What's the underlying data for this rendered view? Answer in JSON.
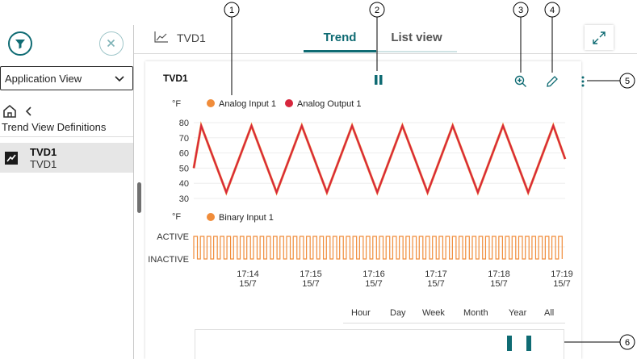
{
  "sidebar": {
    "app_view_label": "Application View",
    "breadcrumb_label": "Trend View Definitions",
    "items": [
      {
        "title": "TVD1",
        "subtitle": "TVD1"
      }
    ]
  },
  "header": {
    "title": "TVD1",
    "tabs": [
      {
        "label": "Trend",
        "active": true
      },
      {
        "label": "List view",
        "active": false
      }
    ]
  },
  "panel": {
    "title": "TVD1"
  },
  "chart_data": [
    {
      "type": "line",
      "unit_label": "°F",
      "series": [
        {
          "name": "Analog Input 1",
          "color": "#f08c3a"
        },
        {
          "name": "Analog Output 1",
          "color": "#d7263d"
        }
      ],
      "y_ticks": [
        80,
        70,
        60,
        50,
        40,
        30
      ],
      "ylim": [
        30,
        80
      ],
      "peaks_x_labels_hint": "sawtooth 34-78 repeating",
      "triangle_points": [
        [
          0,
          50
        ],
        [
          0.5,
          78
        ],
        [
          2.2,
          34
        ],
        [
          3.9,
          78
        ],
        [
          5.6,
          34
        ],
        [
          7.3,
          78
        ],
        [
          9.0,
          34
        ],
        [
          10.7,
          78
        ],
        [
          12.4,
          34
        ],
        [
          14.1,
          78
        ],
        [
          15.8,
          34
        ],
        [
          17.5,
          78
        ],
        [
          19.2,
          34
        ],
        [
          20.9,
          78
        ],
        [
          22.6,
          34
        ],
        [
          24.3,
          78
        ],
        [
          25.1,
          56
        ]
      ]
    },
    {
      "type": "line",
      "unit_label": "°F",
      "series": [
        {
          "name": "Binary Input 1",
          "color": "#f08c3a"
        }
      ],
      "y_ticks": [
        "ACTIVE",
        "INACTIVE"
      ],
      "x_ticks": [
        {
          "time": "17:14",
          "date": "15/7"
        },
        {
          "time": "17:15",
          "date": "15/7"
        },
        {
          "time": "17:16",
          "date": "15/7"
        },
        {
          "time": "17:17",
          "date": "15/7"
        },
        {
          "time": "17:18",
          "date": "15/7"
        },
        {
          "time": "17:19",
          "date": "15/7"
        }
      ],
      "pulse_count": 56
    }
  ],
  "ranges": [
    "Hour",
    "Day",
    "Week",
    "Month",
    "Year",
    "All"
  ],
  "callouts": [
    "1",
    "2",
    "3",
    "4",
    "5",
    "6"
  ],
  "colors": {
    "accent": "#0f6b73",
    "series_orange": "#f08c3a",
    "series_red": "#d7263d"
  },
  "icons": {
    "filter": "filter-icon",
    "close": "close-icon",
    "home": "home-icon",
    "back": "chevron-left-icon",
    "trend": "trend-icon",
    "expand": "expand-icon",
    "pause": "pause-icon",
    "zoom": "zoom-in-icon",
    "edit": "pencil-icon",
    "more": "more-vertical-icon"
  }
}
